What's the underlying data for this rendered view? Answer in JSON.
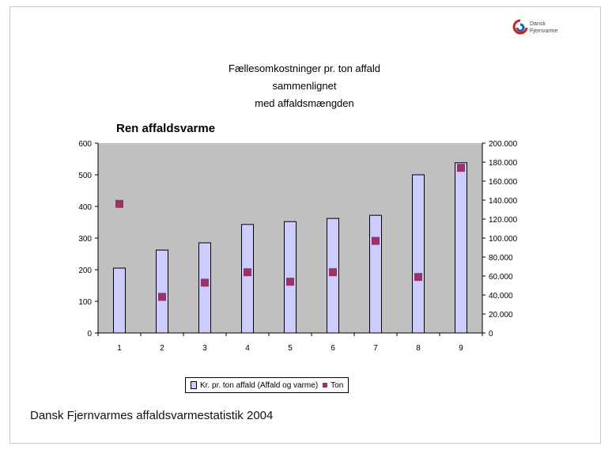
{
  "logo": {
    "text": "Dansk\nFjernvarme"
  },
  "title_lines": [
    "Fællesomkostninger pr. ton affald",
    "sammenlignet",
    "med affaldsmængden"
  ],
  "subtitle": "Ren affaldsvarme",
  "legend": {
    "bar_label": "Kr. pr. ton affald (Affald og varme)",
    "point_label": "Ton"
  },
  "source": "Dansk Fjernvarmes affaldsvarmestatistik 2004",
  "colors": {
    "bar": "#ccccff",
    "point": "#993366",
    "plot_bg": "#c0c0c0"
  },
  "chart_data": {
    "type": "bar",
    "categories": [
      "1",
      "2",
      "3",
      "4",
      "5",
      "6",
      "7",
      "8",
      "9"
    ],
    "series": [
      {
        "type": "bar",
        "axis": "left",
        "values": [
          205,
          262,
          285,
          343,
          352,
          362,
          372,
          500,
          538
        ]
      },
      {
        "type": "scatter",
        "axis": "right",
        "values": [
          136000,
          38000,
          53000,
          64000,
          54000,
          64000,
          97000,
          59000,
          174000
        ]
      }
    ],
    "ylim": [
      0,
      600
    ],
    "y_ticks": [
      "0",
      "100",
      "200",
      "300",
      "400",
      "500",
      "600"
    ],
    "y2lim": [
      0,
      200000
    ],
    "y2_ticks": [
      "0",
      "20.000",
      "40.000",
      "60.000",
      "80.000",
      "100.000",
      "120.000",
      "140.000",
      "160.000",
      "180.000",
      "200.000"
    ],
    "grid": false,
    "legend_position": "bottom"
  }
}
